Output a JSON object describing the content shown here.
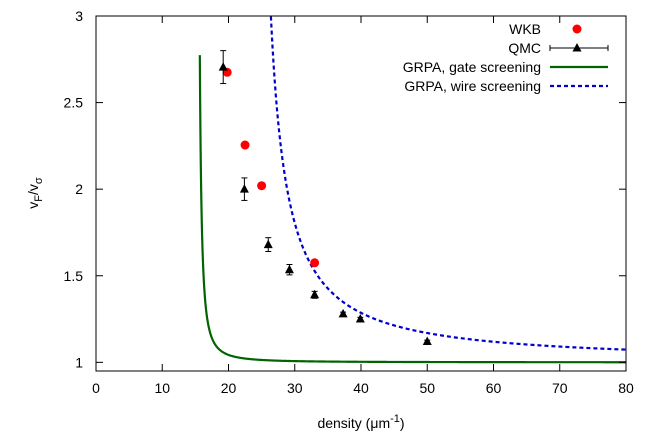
{
  "chart_data": {
    "type": "scatter",
    "xlabel": "density (μm⁻¹)",
    "xlabel_parts": {
      "main": "density (",
      "mu": "μ",
      "m": "m",
      "exp": "-1",
      "close": ")"
    },
    "ylabel_parts": {
      "v": "v",
      "sub1": "F",
      "slash": "/v",
      "sub2": "σ"
    },
    "xlim": [
      0,
      80
    ],
    "ylim": [
      0.95,
      3.0
    ],
    "x_ticks": [
      0,
      10,
      20,
      30,
      40,
      50,
      60,
      70,
      80
    ],
    "y_ticks": [
      1,
      1.5,
      2,
      2.5,
      3
    ],
    "y_tick_labels": [
      "1",
      "1.5",
      "2",
      "2.5",
      "3"
    ],
    "grid": false,
    "legend_position": "top-right",
    "series": [
      {
        "name": "WKB",
        "kind": "points",
        "marker": "circle",
        "color": "#ff0000",
        "points": [
          [
            19.8,
            2.675
          ],
          [
            22.5,
            2.255
          ],
          [
            25.0,
            2.02
          ],
          [
            33.0,
            1.575
          ]
        ]
      },
      {
        "name": "QMC",
        "kind": "errorbar",
        "marker": "triangle",
        "color": "#000000",
        "points": [
          [
            19.2,
            2.705,
            0.095
          ],
          [
            22.4,
            2.0,
            0.065
          ],
          [
            26.0,
            1.68,
            0.04
          ],
          [
            29.2,
            1.535,
            0.03
          ],
          [
            33.0,
            1.39,
            0.02
          ],
          [
            37.3,
            1.28,
            0.01
          ],
          [
            39.9,
            1.25,
            0.01
          ],
          [
            50.0,
            1.12,
            0.008
          ]
        ]
      },
      {
        "name": "GRPA, gate screening",
        "kind": "curve",
        "style": "solid",
        "color": "#006400",
        "asymptote_x": 15.2,
        "asymptote_y": 1.0,
        "coefficient": 0.53,
        "power": 1.6,
        "x_range": [
          15.67,
          80
        ]
      },
      {
        "name": "GRPA, wire screening",
        "kind": "curve",
        "style": "dashed",
        "color": "#0000cc",
        "asymptote_x": 23.6,
        "asymptote_y": 1.0,
        "coefficient": 6.2,
        "power": 1.1,
        "x_range": [
          25.42,
          80
        ]
      }
    ]
  }
}
